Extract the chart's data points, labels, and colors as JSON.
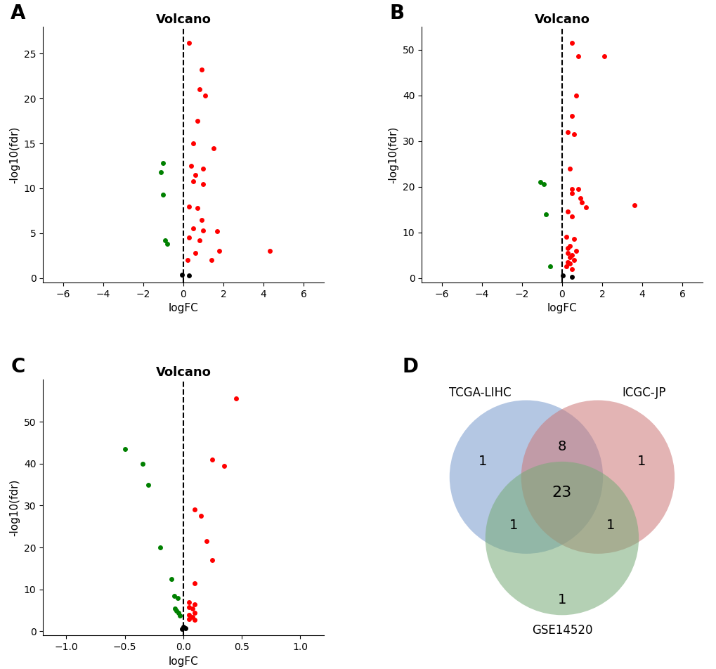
{
  "panel_A": {
    "title": "Volcano",
    "xlabel": "logFC",
    "ylabel": "-log10(fdr)",
    "xlim": [
      -7,
      7
    ],
    "ylim": [
      -0.5,
      28
    ],
    "xticks": [
      -6,
      -4,
      -2,
      0,
      2,
      4,
      6
    ],
    "yticks": [
      0,
      5,
      10,
      15,
      20,
      25
    ],
    "red_points": [
      [
        0.3,
        26.2
      ],
      [
        0.9,
        23.2
      ],
      [
        0.8,
        21.0
      ],
      [
        1.1,
        20.3
      ],
      [
        0.7,
        17.5
      ],
      [
        0.5,
        15.0
      ],
      [
        1.5,
        14.5
      ],
      [
        0.4,
        12.5
      ],
      [
        1.0,
        12.2
      ],
      [
        0.6,
        11.5
      ],
      [
        0.5,
        10.8
      ],
      [
        1.0,
        10.5
      ],
      [
        0.3,
        8.0
      ],
      [
        0.7,
        7.8
      ],
      [
        0.9,
        6.5
      ],
      [
        0.5,
        5.5
      ],
      [
        1.0,
        5.3
      ],
      [
        1.7,
        5.2
      ],
      [
        0.3,
        4.5
      ],
      [
        0.8,
        4.2
      ],
      [
        1.8,
        3.0
      ],
      [
        4.3,
        3.0
      ],
      [
        0.6,
        2.8
      ],
      [
        0.2,
        2.0
      ],
      [
        1.4,
        2.0
      ]
    ],
    "green_points": [
      [
        -1.0,
        12.8
      ],
      [
        -1.1,
        11.8
      ],
      [
        -1.0,
        9.3
      ],
      [
        -0.9,
        4.2
      ],
      [
        -0.8,
        3.8
      ]
    ],
    "black_points": [
      [
        -0.05,
        0.4
      ],
      [
        0.3,
        0.3
      ]
    ]
  },
  "panel_B": {
    "title": "Volcano",
    "xlabel": "logFC",
    "ylabel": "-log10(fdr)",
    "xlim": [
      -7,
      7
    ],
    "ylim": [
      -1,
      55
    ],
    "xticks": [
      -6,
      -4,
      -2,
      0,
      2,
      4,
      6
    ],
    "yticks": [
      0,
      10,
      20,
      30,
      40,
      50
    ],
    "red_points": [
      [
        0.5,
        51.5
      ],
      [
        0.8,
        48.5
      ],
      [
        2.1,
        48.5
      ],
      [
        0.7,
        40.0
      ],
      [
        0.5,
        35.5
      ],
      [
        0.3,
        32.0
      ],
      [
        0.6,
        31.5
      ],
      [
        0.4,
        24.0
      ],
      [
        0.5,
        19.5
      ],
      [
        0.8,
        19.5
      ],
      [
        0.5,
        18.5
      ],
      [
        0.9,
        17.5
      ],
      [
        1.0,
        16.5
      ],
      [
        1.2,
        15.5
      ],
      [
        0.3,
        14.5
      ],
      [
        0.5,
        13.5
      ],
      [
        3.6,
        16.0
      ],
      [
        0.2,
        9.0
      ],
      [
        0.6,
        8.5
      ],
      [
        0.4,
        7.0
      ],
      [
        0.3,
        6.5
      ],
      [
        0.7,
        6.0
      ],
      [
        0.3,
        5.5
      ],
      [
        0.5,
        5.0
      ],
      [
        0.4,
        4.5
      ],
      [
        0.6,
        4.0
      ],
      [
        0.3,
        3.5
      ],
      [
        0.4,
        3.2
      ],
      [
        0.2,
        2.5
      ],
      [
        0.5,
        2.0
      ]
    ],
    "green_points": [
      [
        -1.1,
        21.0
      ],
      [
        -0.9,
        20.5
      ],
      [
        -0.8,
        14.0
      ],
      [
        -0.6,
        2.5
      ]
    ],
    "black_points": [
      [
        0.05,
        0.5
      ],
      [
        0.5,
        0.3
      ]
    ]
  },
  "panel_C": {
    "title": "Volcano",
    "xlabel": "logFC",
    "ylabel": "-log10(fdr)",
    "xlim": [
      -1.2,
      1.2
    ],
    "ylim": [
      -1,
      60
    ],
    "xticks": [
      -1.0,
      -0.5,
      0.0,
      0.5,
      1.0
    ],
    "yticks": [
      0,
      10,
      20,
      30,
      40,
      50
    ],
    "red_points": [
      [
        0.45,
        55.5
      ],
      [
        0.25,
        41.0
      ],
      [
        0.35,
        39.5
      ],
      [
        0.1,
        29.0
      ],
      [
        0.15,
        27.5
      ],
      [
        0.2,
        21.5
      ],
      [
        0.25,
        17.0
      ],
      [
        0.1,
        11.5
      ],
      [
        0.05,
        7.0
      ],
      [
        0.1,
        6.5
      ],
      [
        0.05,
        5.8
      ],
      [
        0.08,
        5.5
      ],
      [
        0.1,
        4.5
      ],
      [
        0.05,
        4.0
      ],
      [
        0.08,
        3.5
      ],
      [
        0.05,
        3.0
      ],
      [
        0.1,
        2.8
      ]
    ],
    "green_points": [
      [
        -0.5,
        43.5
      ],
      [
        -0.35,
        40.0
      ],
      [
        -0.3,
        35.0
      ],
      [
        -0.2,
        20.0
      ],
      [
        -0.1,
        12.5
      ],
      [
        -0.08,
        8.5
      ],
      [
        -0.05,
        8.0
      ],
      [
        -0.07,
        5.5
      ],
      [
        -0.06,
        5.0
      ],
      [
        -0.04,
        4.5
      ],
      [
        -0.03,
        3.8
      ]
    ],
    "black_points": [
      [
        0.0,
        1.0
      ],
      [
        0.02,
        0.8
      ],
      [
        -0.01,
        0.5
      ]
    ]
  },
  "venn": {
    "labels": [
      "TCGA-LIHC",
      "ICGC-JP",
      "GSE14520"
    ],
    "colors": [
      "#7799CC",
      "#CC7777",
      "#77AA77"
    ],
    "alphas": [
      0.55,
      0.55,
      0.55
    ],
    "counts": {
      "A_only": "1",
      "B_only": "1",
      "C_only": "1",
      "AB_only": "8",
      "AC_only": "1",
      "BC_only": "1",
      "ABC": "23"
    }
  },
  "panel_label_fontsize": 20,
  "title_fontsize": 13,
  "axis_label_fontsize": 11,
  "tick_fontsize": 10,
  "point_size": 25
}
